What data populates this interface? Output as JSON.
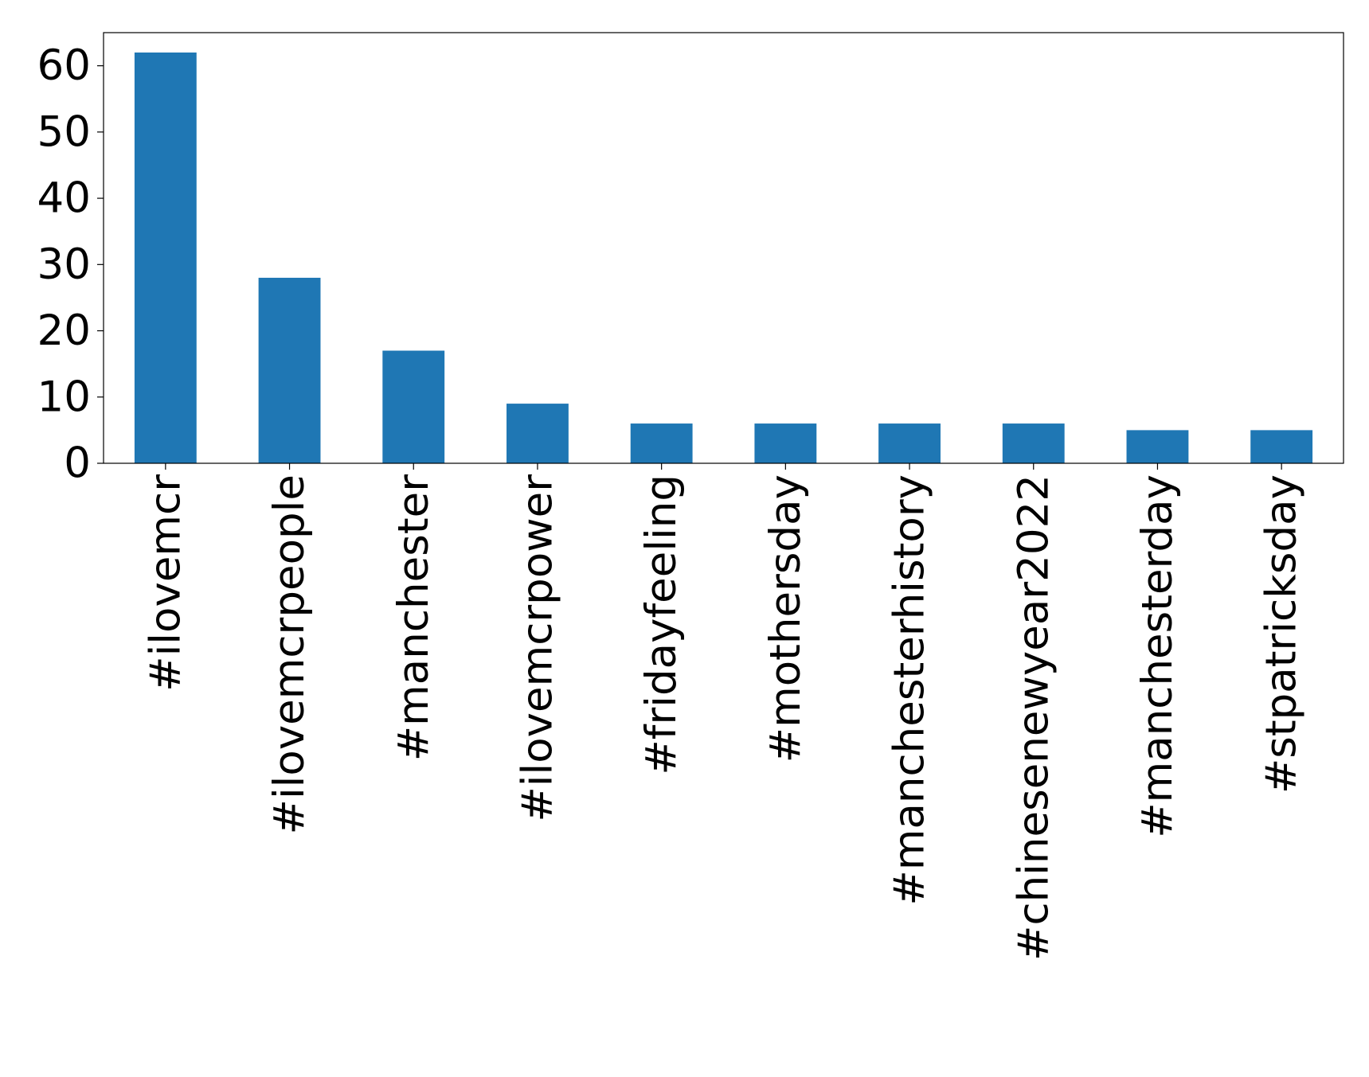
{
  "chart_data": {
    "type": "bar",
    "categories": [
      "#ilovemcr",
      "#ilovemcrpeople",
      "#manchester",
      "#ilovemcrpower",
      "#fridayfeeling",
      "#mothersday",
      "#manchesterhistory",
      "#chinesenewyear2022",
      "#manchesterday",
      "#stpatricksday"
    ],
    "values": [
      62,
      28,
      17,
      9,
      6,
      6,
      6,
      6,
      5,
      5
    ],
    "color": "#1f77b4",
    "ylim": [
      0,
      65
    ],
    "yticks": [
      0,
      10,
      20,
      30,
      40,
      50,
      60
    ],
    "grid": false
  }
}
